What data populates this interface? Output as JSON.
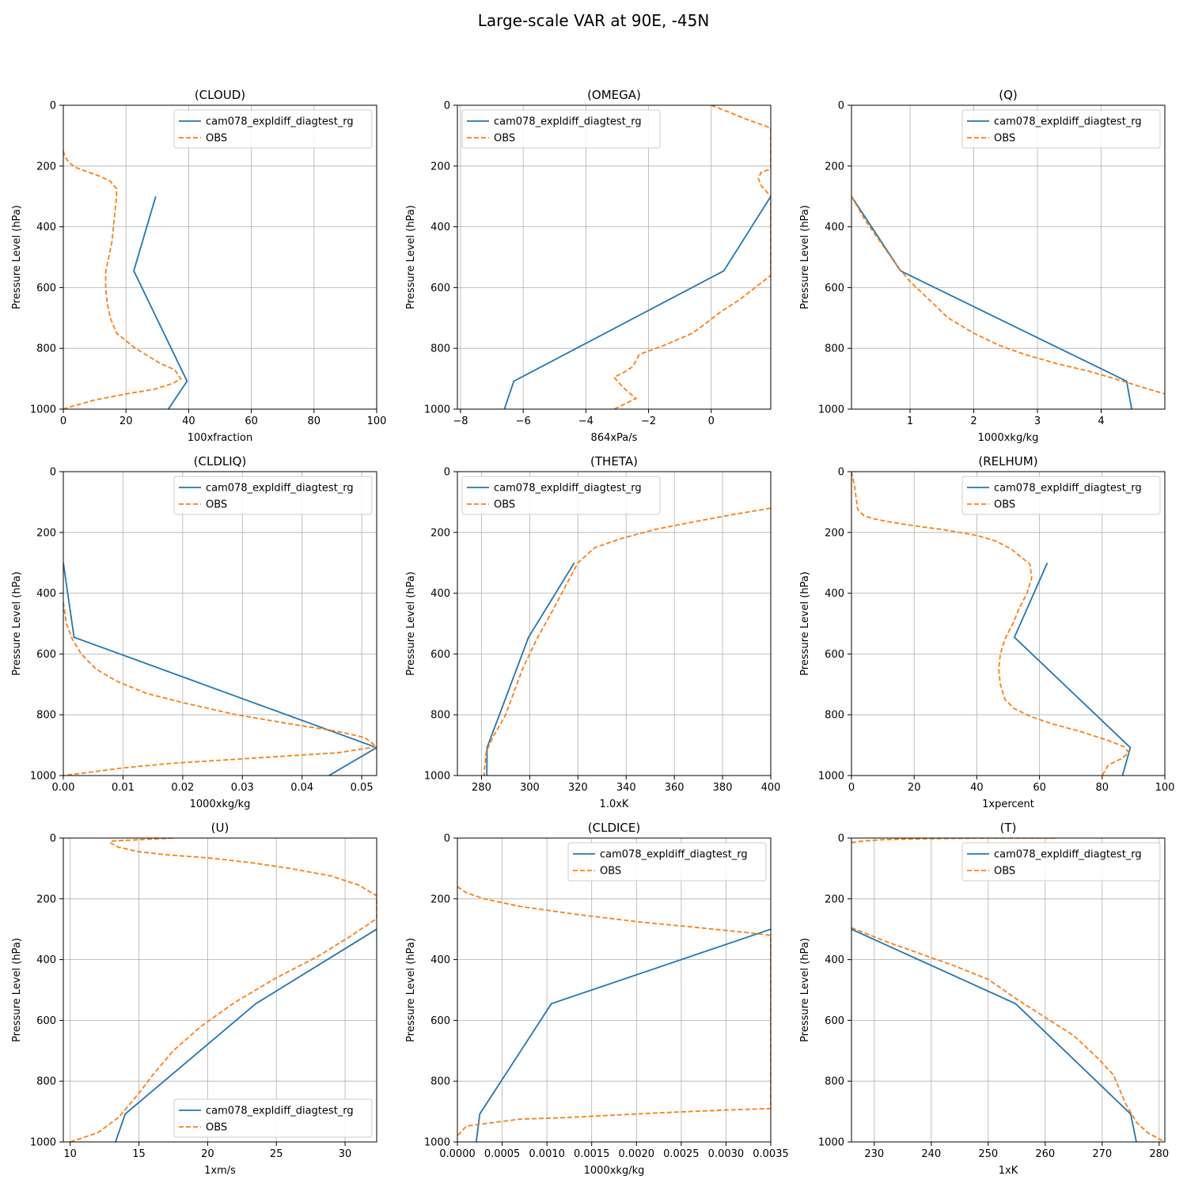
{
  "figure": {
    "title": "Large-scale VAR at 90E, -45N"
  },
  "colors": {
    "model": "#1f77b4",
    "obs": "#ff7f0e",
    "grid": "#b0b0b0",
    "axis": "#000000",
    "legend_border": "#cccccc"
  },
  "chart_data": [
    {
      "type": "line",
      "title": "(CLOUD)",
      "xlabel": "100xfraction",
      "ylabel": "Pressure Level (hPa)",
      "xlim": [
        0,
        100
      ],
      "ylim": [
        1000,
        0
      ],
      "xticks": [
        0,
        20,
        40,
        60,
        80,
        100
      ],
      "xtick_labels": [
        "0",
        "20",
        "40",
        "60",
        "80",
        "100"
      ],
      "yticks": [
        0,
        200,
        400,
        600,
        800,
        1000
      ],
      "ytick_labels": [
        "0",
        "200",
        "400",
        "600",
        "800",
        "1000"
      ],
      "grid": true,
      "legend": "upper right",
      "series": [
        {
          "name": "cam078_expldiff_diagtest_rg",
          "style": "solid",
          "x": [
            29.5,
            22.5,
            39.5,
            33.5
          ],
          "y": [
            300,
            545,
            908,
            1000
          ]
        },
        {
          "name": "OBS",
          "style": "dashed",
          "x": [
            0,
            0.5,
            2,
            4,
            8,
            12,
            15,
            17,
            17,
            16.5,
            16,
            15.5,
            14.5,
            13.5,
            13.5,
            14,
            15,
            17,
            20,
            23,
            27,
            31,
            35.5,
            37.5,
            35,
            29,
            20,
            10,
            3,
            0
          ],
          "y": [
            150,
            170,
            190,
            205,
            220,
            235,
            250,
            275,
            300,
            350,
            400,
            450,
            500,
            550,
            600,
            650,
            700,
            750,
            775,
            800,
            825,
            850,
            870,
            900,
            915,
            935,
            950,
            970,
            990,
            1000
          ]
        }
      ]
    },
    {
      "type": "line",
      "title": "(OMEGA)",
      "xlabel": "864xPa/s",
      "ylabel": "Pressure Level (hPa)",
      "xlim": [
        -8.1,
        1.9
      ],
      "ylim": [
        1000,
        0
      ],
      "xticks": [
        -8,
        -6,
        -4,
        -2,
        0
      ],
      "xtick_labels": [
        "−8",
        "−6",
        "−4",
        "−2",
        "0"
      ],
      "yticks": [
        0,
        200,
        400,
        600,
        800,
        1000
      ],
      "ytick_labels": [
        "0",
        "200",
        "400",
        "600",
        "800",
        "1000"
      ],
      "grid": true,
      "legend": "upper left",
      "series": [
        {
          "name": "cam078_expldiff_diagtest_rg",
          "style": "solid",
          "x": [
            1.9,
            0.4,
            -6.3,
            -6.6
          ],
          "y": [
            300,
            545,
            908,
            1000
          ]
        },
        {
          "name": "OBS",
          "style": "dashed",
          "x": [
            0,
            0.5,
            1.1,
            1.9,
            1.9,
            1.6,
            1.5,
            1.6,
            1.9,
            1.9,
            1.4,
            0.9,
            0.3,
            -0.2,
            -0.6,
            -1.5,
            -2.3,
            -2.5,
            -2.8,
            -3.1,
            -2.8,
            -2.4,
            -3.1
          ],
          "y": [
            0,
            20,
            45,
            75,
            210,
            220,
            240,
            265,
            300,
            560,
            600,
            640,
            680,
            720,
            750,
            790,
            820,
            860,
            880,
            895,
            930,
            965,
            1000
          ]
        }
      ]
    },
    {
      "type": "line",
      "title": "(Q)",
      "xlabel": "1000xkg/kg",
      "ylabel": "Pressure Level (hPa)",
      "xlim": [
        0.08,
        5.0
      ],
      "ylim": [
        1000,
        0
      ],
      "xticks": [
        1,
        2,
        3,
        4
      ],
      "xtick_labels": [
        "1",
        "2",
        "3",
        "4"
      ],
      "yticks": [
        0,
        200,
        400,
        600,
        800,
        1000
      ],
      "ytick_labels": [
        "0",
        "200",
        "400",
        "600",
        "800",
        "1000"
      ],
      "grid": true,
      "legend": "upper right",
      "series": [
        {
          "name": "cam078_expldiff_diagtest_rg",
          "style": "solid",
          "x": [
            0.08,
            0.85,
            4.4,
            4.48
          ],
          "y": [
            300,
            545,
            908,
            1000
          ]
        },
        {
          "name": "OBS",
          "style": "dashed",
          "x": [
            0.08,
            0.3,
            0.6,
            0.8,
            1.0,
            1.3,
            1.6,
            2.0,
            2.4,
            2.8,
            3.3,
            3.8,
            4.3,
            4.6,
            5.0
          ],
          "y": [
            300,
            380,
            470,
            530,
            580,
            640,
            700,
            750,
            790,
            820,
            850,
            875,
            905,
            925,
            950
          ]
        }
      ]
    },
    {
      "type": "line",
      "title": "(CLDLIQ)",
      "xlabel": "1000xkg/kg",
      "ylabel": "Pressure Level (hPa)",
      "xlim": [
        0,
        0.0525
      ],
      "ylim": [
        1000,
        0
      ],
      "xticks": [
        0,
        0.01,
        0.02,
        0.03,
        0.04,
        0.05
      ],
      "xtick_labels": [
        "0.00",
        "0.01",
        "0.02",
        "0.03",
        "0.04",
        "0.05"
      ],
      "yticks": [
        0,
        200,
        400,
        600,
        800,
        1000
      ],
      "ytick_labels": [
        "0",
        "200",
        "400",
        "600",
        "800",
        "1000"
      ],
      "grid": true,
      "legend": "upper right",
      "series": [
        {
          "name": "cam078_expldiff_diagtest_rg",
          "style": "solid",
          "x": [
            0,
            0.0018,
            0.0525,
            0.0445
          ],
          "y": [
            300,
            545,
            908,
            1000
          ]
        },
        {
          "name": "OBS",
          "style": "dashed",
          "x": [
            0,
            0.0005,
            0.0015,
            0.003,
            0.0055,
            0.009,
            0.014,
            0.02,
            0.029,
            0.038,
            0.046,
            0.0505,
            0.0525,
            0.046,
            0.03,
            0.018,
            0.01,
            0.004,
            0
          ],
          "y": [
            430,
            500,
            550,
            600,
            650,
            690,
            730,
            760,
            800,
            830,
            855,
            875,
            905,
            925,
            945,
            960,
            975,
            990,
            1000
          ]
        }
      ]
    },
    {
      "type": "line",
      "title": "(THETA)",
      "xlabel": "1.0xK",
      "ylabel": "Pressure Level (hPa)",
      "xlim": [
        270,
        400
      ],
      "ylim": [
        1000,
        0
      ],
      "xticks": [
        280,
        300,
        320,
        340,
        360,
        380,
        400
      ],
      "xtick_labels": [
        "280",
        "300",
        "320",
        "340",
        "360",
        "380",
        "400"
      ],
      "yticks": [
        0,
        200,
        400,
        600,
        800,
        1000
      ],
      "ytick_labels": [
        "0",
        "200",
        "400",
        "600",
        "800",
        "1000"
      ],
      "grid": true,
      "legend": "upper left",
      "series": [
        {
          "name": "cam078_expldiff_diagtest_rg",
          "style": "solid",
          "x": [
            318.5,
            299.5,
            282.3,
            282.2
          ],
          "y": [
            300,
            545,
            908,
            1000
          ]
        },
        {
          "name": "OBS",
          "style": "dashed",
          "x": [
            400,
            385,
            368,
            352,
            338,
            327,
            320,
            316,
            310,
            303,
            297,
            290,
            285,
            282,
            281
          ],
          "y": [
            120,
            140,
            165,
            190,
            220,
            250,
            300,
            360,
            450,
            550,
            650,
            800,
            870,
            920,
            1000
          ]
        }
      ]
    },
    {
      "type": "line",
      "title": "(RELHUM)",
      "xlabel": "1xpercent",
      "ylabel": "Pressure Level (hPa)",
      "xlim": [
        0,
        100
      ],
      "ylim": [
        1000,
        0
      ],
      "xticks": [
        0,
        20,
        40,
        60,
        80,
        100
      ],
      "xtick_labels": [
        "0",
        "20",
        "40",
        "60",
        "80",
        "100"
      ],
      "yticks": [
        0,
        200,
        400,
        600,
        800,
        1000
      ],
      "ytick_labels": [
        "0",
        "200",
        "400",
        "600",
        "800",
        "1000"
      ],
      "grid": true,
      "legend": "upper right",
      "series": [
        {
          "name": "cam078_expldiff_diagtest_rg",
          "style": "solid",
          "x": [
            62.5,
            52,
            89,
            86.5
          ],
          "y": [
            300,
            545,
            908,
            1000
          ]
        },
        {
          "name": "OBS",
          "style": "dashed",
          "x": [
            0,
            1,
            2,
            4,
            7,
            12,
            20,
            30,
            40,
            46,
            51,
            54,
            57,
            57.5,
            56,
            53.5,
            51.5,
            49,
            47.5,
            47,
            47.5,
            49,
            52,
            57,
            64,
            73,
            82,
            87,
            88.5,
            86,
            82,
            80
          ],
          "y": [
            0,
            50,
            125,
            145,
            155,
            165,
            178,
            192,
            210,
            228,
            255,
            280,
            305,
            350,
            400,
            450,
            500,
            550,
            600,
            650,
            700,
            750,
            780,
            805,
            830,
            855,
            885,
            905,
            925,
            945,
            965,
            1000
          ]
        }
      ]
    },
    {
      "type": "line",
      "title": "(U)",
      "xlabel": "1xm/s",
      "ylabel": "Pressure Level (hPa)",
      "xlim": [
        9.5,
        32.3
      ],
      "ylim": [
        1000,
        0
      ],
      "xticks": [
        10,
        15,
        20,
        25,
        30
      ],
      "xtick_labels": [
        "10",
        "15",
        "20",
        "25",
        "30"
      ],
      "yticks": [
        0,
        200,
        400,
        600,
        800,
        1000
      ],
      "ytick_labels": [
        "0",
        "200",
        "400",
        "600",
        "800",
        "1000"
      ],
      "grid": true,
      "legend": "lower right",
      "series": [
        {
          "name": "cam078_expldiff_diagtest_rg",
          "style": "solid",
          "x": [
            32.3,
            23.5,
            14,
            13.3
          ],
          "y": [
            300,
            545,
            908,
            1000
          ]
        },
        {
          "name": "OBS",
          "style": "dashed",
          "x": [
            17.5,
            13,
            12.9,
            13.5,
            15,
            17,
            20,
            23,
            26,
            29,
            31,
            32.3,
            32.3,
            30.5,
            28,
            25,
            22,
            19.5,
            17.5,
            16,
            15,
            13.5,
            12,
            10
          ],
          "y": [
            0,
            10,
            15,
            30,
            45,
            55,
            65,
            80,
            100,
            125,
            155,
            190,
            265,
            320,
            390,
            460,
            540,
            620,
            700,
            780,
            840,
            920,
            970,
            1000
          ]
        }
      ]
    },
    {
      "type": "line",
      "title": "(CLDICE)",
      "xlabel": "1000xkg/kg",
      "ylabel": "Pressure Level (hPa)",
      "xlim": [
        0,
        0.0035
      ],
      "ylim": [
        1000,
        0
      ],
      "xticks": [
        0,
        0.0005,
        0.001,
        0.0015,
        0.002,
        0.0025,
        0.003,
        0.0035
      ],
      "xtick_labels": [
        "0.0000",
        "0.0005",
        "0.0010",
        "0.0015",
        "0.0020",
        "0.0025",
        "0.0030",
        "0.0035"
      ],
      "yticks": [
        0,
        200,
        400,
        600,
        800,
        1000
      ],
      "ytick_labels": [
        "0",
        "200",
        "400",
        "600",
        "800",
        "1000"
      ],
      "grid": true,
      "legend": "upper right",
      "series": [
        {
          "name": "cam078_expldiff_diagtest_rg",
          "style": "solid",
          "x": [
            0.0035,
            0.00105,
            0.00025,
            0.00021
          ],
          "y": [
            300,
            545,
            908,
            1000
          ]
        },
        {
          "name": "OBS",
          "style": "dashed",
          "x": [
            0,
            0.0001,
            0.0003,
            0.0007,
            0.0013,
            0.002,
            0.0027,
            0.0032,
            0.0035,
            0.0035,
            0.003,
            0.0022,
            0.0012,
            0.0007,
            0.0003,
            0.0001,
            0
          ],
          "y": [
            160,
            180,
            200,
            225,
            250,
            275,
            295,
            310,
            320,
            890,
            895,
            905,
            920,
            925,
            940,
            948,
            980
          ]
        }
      ]
    },
    {
      "type": "line",
      "title": "(T)",
      "xlabel": "1xK",
      "ylabel": "Pressure Level (hPa)",
      "xlim": [
        226,
        281
      ],
      "ylim": [
        1000,
        0
      ],
      "xticks": [
        230,
        240,
        250,
        260,
        270,
        280
      ],
      "xtick_labels": [
        "230",
        "240",
        "250",
        "260",
        "270",
        "280"
      ],
      "yticks": [
        0,
        200,
        400,
        600,
        800,
        1000
      ],
      "ytick_labels": [
        "0",
        "200",
        "400",
        "600",
        "800",
        "1000"
      ],
      "grid": true,
      "legend": "upper right",
      "series": [
        {
          "name": "cam078_expldiff_diagtest_rg",
          "style": "solid",
          "x": [
            226,
            254.8,
            275,
            276
          ],
          "y": [
            300,
            545,
            908,
            1000
          ]
        },
        {
          "name": "OBS",
          "style": "dashed",
          "x": [
            226,
            232,
            244,
            250,
            255,
            260,
            265,
            269,
            272,
            274,
            276,
            278,
            281
          ],
          "y": [
            295,
            340,
            420,
            465,
            530,
            590,
            650,
            720,
            780,
            870,
            935,
            970,
            1000
          ]
        },
        {
          "name": "OBS",
          "style": "dashed",
          "x": [
            226,
            228,
            232,
            240,
            250,
            258,
            262
          ],
          "y": [
            15,
            10,
            5,
            2,
            0,
            0,
            0
          ]
        }
      ]
    }
  ]
}
